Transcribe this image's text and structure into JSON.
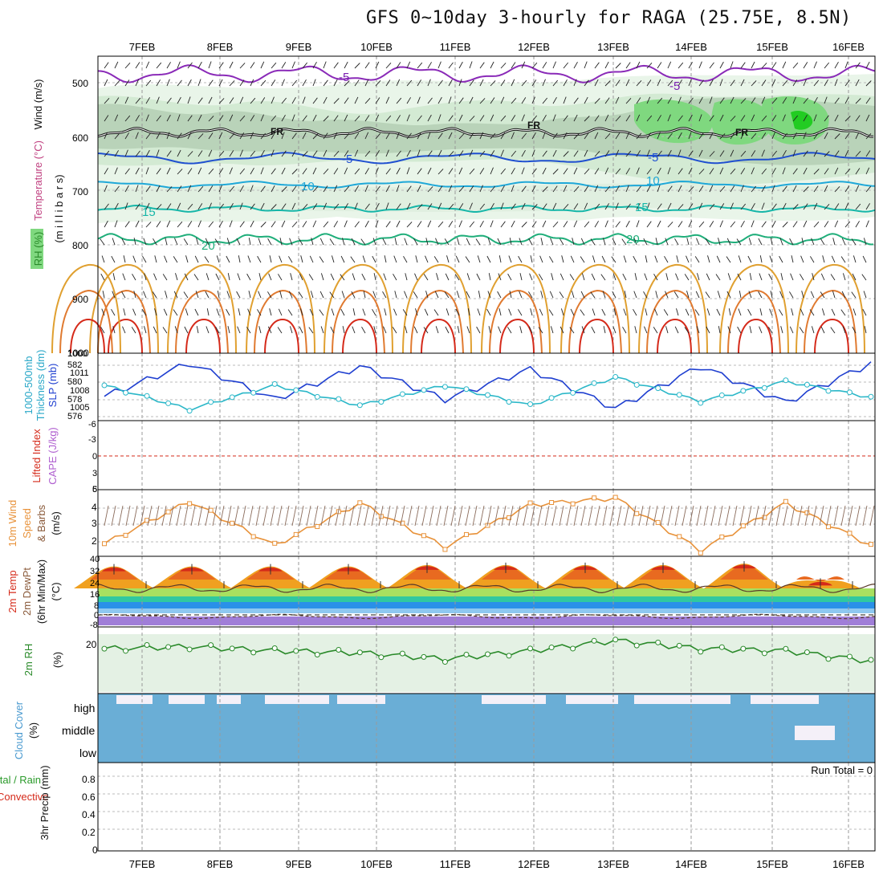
{
  "title": "GFS 0~10day 3-hourly for RAGA (25.75E, 8.5N)",
  "dates": [
    "7FEB",
    "8FEB",
    "9FEB",
    "10FEB",
    "11FEB",
    "12FEB",
    "13FEB",
    "14FEB",
    "15FEB",
    "16FEB"
  ],
  "colors": {
    "frame": "#000000",
    "grid": "#999999",
    "rh_fill": "#7fd87f",
    "slp": "#1f3fd0",
    "thickness": "#2ab7c8",
    "wind": "#e8923a",
    "temp_hot": "#d52a1a",
    "cloud": "#6aaed6",
    "rh2m": "#2a8a2a"
  },
  "panels": {
    "upper": {
      "ylabels": [
        "Wind (m/s)",
        "Temperature (°C)",
        "RH (%)",
        "(m i l l i b a r s)"
      ],
      "pressure_ticks": [
        "500",
        "600",
        "700",
        "800",
        "900",
        "1000"
      ],
      "temp_labels": [
        "-5",
        "-5",
        "FR",
        "FR",
        "FR",
        "-5",
        "-5",
        "10",
        "10",
        "15",
        "15",
        "20",
        "20"
      ]
    },
    "slp": {
      "ylabels": [
        "1000-500mb",
        "Thickness (dm)",
        "SLP (mb)"
      ],
      "ticks_left": [
        "582",
        "580",
        "578",
        "576"
      ],
      "ticks_right": [
        "1011",
        "1008",
        "1005"
      ]
    },
    "cape": {
      "ylabels": [
        "Lifted Index",
        "CAPE (J/kg)"
      ],
      "ticks": [
        "-6",
        "-3",
        "0",
        "3",
        "6"
      ],
      "right_ticks": [
        "1000",
        "5"
      ]
    },
    "wind10": {
      "ylabels": [
        "10m Wind",
        "Speed",
        "& Barbs",
        "(m/s)"
      ],
      "ticks": [
        "4",
        "3",
        "2"
      ]
    },
    "temp2m": {
      "ylabels": [
        "2m Temp",
        "2m DewPt",
        "(6hr Min/Max)",
        "(°C)"
      ],
      "ticks": [
        "40",
        "32",
        "24",
        "16",
        "8",
        "0",
        "-8"
      ]
    },
    "rh2m": {
      "ylabels": [
        "2m RH",
        "(%)"
      ],
      "ticks": [
        "20"
      ]
    },
    "cloud": {
      "ylabels": [
        "Cloud Cover",
        "(%)"
      ],
      "levels": [
        "high",
        "middle",
        "low"
      ]
    },
    "precip": {
      "ylabels": [
        "Total / Rain",
        "Convective",
        "3hr Precip (mm)"
      ],
      "ticks": [
        "0.8",
        "0.6",
        "0.4",
        "0.2",
        "0"
      ],
      "run_total": "Run Total = 0"
    }
  },
  "chart_data": [
    {
      "type": "line",
      "title": "1000-500mb Thickness (dm) / SLP (mb)",
      "x": [
        "7FEB",
        "8FEB",
        "9FEB",
        "10FEB",
        "11FEB",
        "12FEB",
        "13FEB",
        "14FEB",
        "15FEB",
        "16FEB"
      ],
      "series": [
        {
          "name": "SLP (mb)",
          "values": [
            1006.5,
            1012.0,
            1006.0,
            1011.5,
            1006.0,
            1011.0,
            1004.5,
            1011.5,
            1005.5,
            1012.0
          ]
        },
        {
          "name": "1000-500mb Thickness (dm)",
          "values": [
            579.5,
            576.5,
            579.5,
            577.0,
            579.5,
            577.0,
            580.5,
            577.5,
            580.0,
            578.0
          ]
        }
      ],
      "ylim_left": [
        575.5,
        583
      ],
      "ylim_right": [
        1003,
        1013
      ]
    },
    {
      "type": "line",
      "title": "10m Wind Speed & Barbs (m/s)",
      "x": [
        "7FEB",
        "8FEB",
        "9FEB",
        "10FEB",
        "11FEB",
        "12FEB",
        "13FEB",
        "14FEB",
        "15FEB",
        "16FEB"
      ],
      "series": [
        {
          "name": "10m Wind Speed",
          "values": [
            1.7,
            4.2,
            1.6,
            4.1,
            1.5,
            4.0,
            4.4,
            1.3,
            4.1,
            1.6
          ]
        }
      ],
      "ylim": [
        1,
        4.8
      ]
    },
    {
      "type": "line",
      "title": "2m RH (%)",
      "x": [
        "7FEB",
        "8FEB",
        "9FEB",
        "10FEB",
        "11FEB",
        "12FEB",
        "13FEB",
        "14FEB",
        "15FEB",
        "16FEB"
      ],
      "series": [
        {
          "name": "2m RH",
          "values": [
            21,
            22,
            20,
            19,
            16,
            20,
            25,
            21,
            20,
            15
          ]
        }
      ],
      "ylim": [
        0,
        30
      ]
    },
    {
      "type": "area",
      "title": "2m Temp (°C)",
      "x": [
        "7FEB",
        "8FEB",
        "9FEB",
        "10FEB",
        "11FEB",
        "12FEB",
        "13FEB",
        "14FEB",
        "15FEB",
        "16FEB"
      ],
      "series": [
        {
          "name": "2m Temp max",
          "values": [
            34,
            34,
            34,
            34,
            35,
            35,
            35,
            35,
            36,
            24
          ]
        },
        {
          "name": "2m Temp min",
          "values": [
            21,
            21,
            21,
            21,
            21,
            21,
            21,
            21,
            21,
            21
          ]
        },
        {
          "name": "2m DewPt",
          "values": [
            -3,
            -2,
            -3,
            -2,
            -3,
            -1,
            -2,
            -3,
            -1,
            -5
          ]
        }
      ],
      "ylim": [
        -8,
        40
      ]
    },
    {
      "type": "bar",
      "title": "3hr Precip (mm)",
      "x": [
        "7FEB",
        "8FEB",
        "9FEB",
        "10FEB",
        "11FEB",
        "12FEB",
        "13FEB",
        "14FEB",
        "15FEB",
        "16FEB"
      ],
      "series": [
        {
          "name": "3hr Precip",
          "values": [
            0,
            0,
            0,
            0,
            0,
            0,
            0,
            0,
            0,
            0
          ]
        }
      ],
      "ylim": [
        0,
        1
      ]
    }
  ]
}
